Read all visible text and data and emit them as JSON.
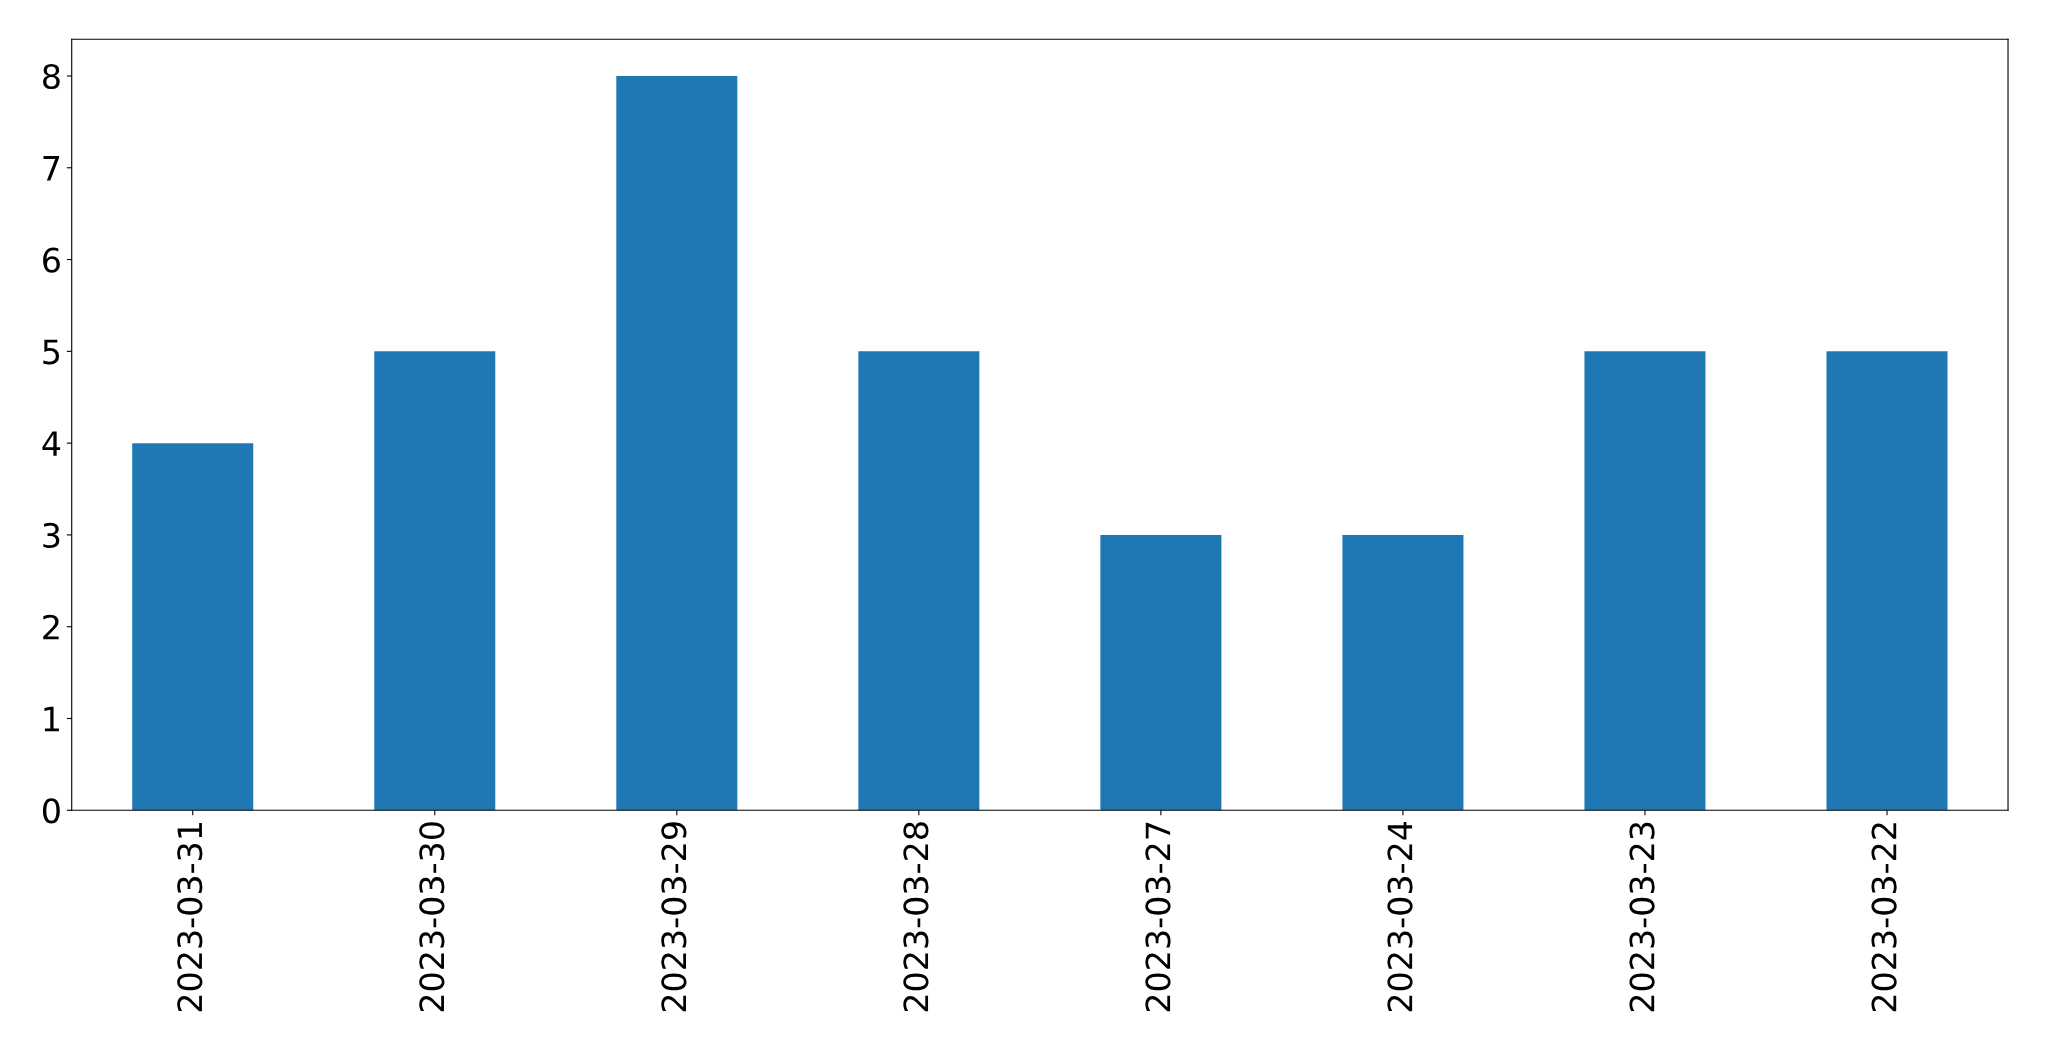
{
  "chart_data": {
    "type": "bar",
    "categories": [
      "2023-03-31",
      "2023-03-30",
      "2023-03-29",
      "2023-03-28",
      "2023-03-27",
      "2023-03-24",
      "2023-03-23",
      "2023-03-22"
    ],
    "values": [
      4,
      5,
      8,
      5,
      3,
      3,
      5,
      5
    ],
    "color": "#1f77b4",
    "ylim": [
      0,
      8.4
    ],
    "yticks": [
      0,
      1,
      2,
      3,
      4,
      5,
      6,
      7,
      8
    ],
    "grid": false
  }
}
